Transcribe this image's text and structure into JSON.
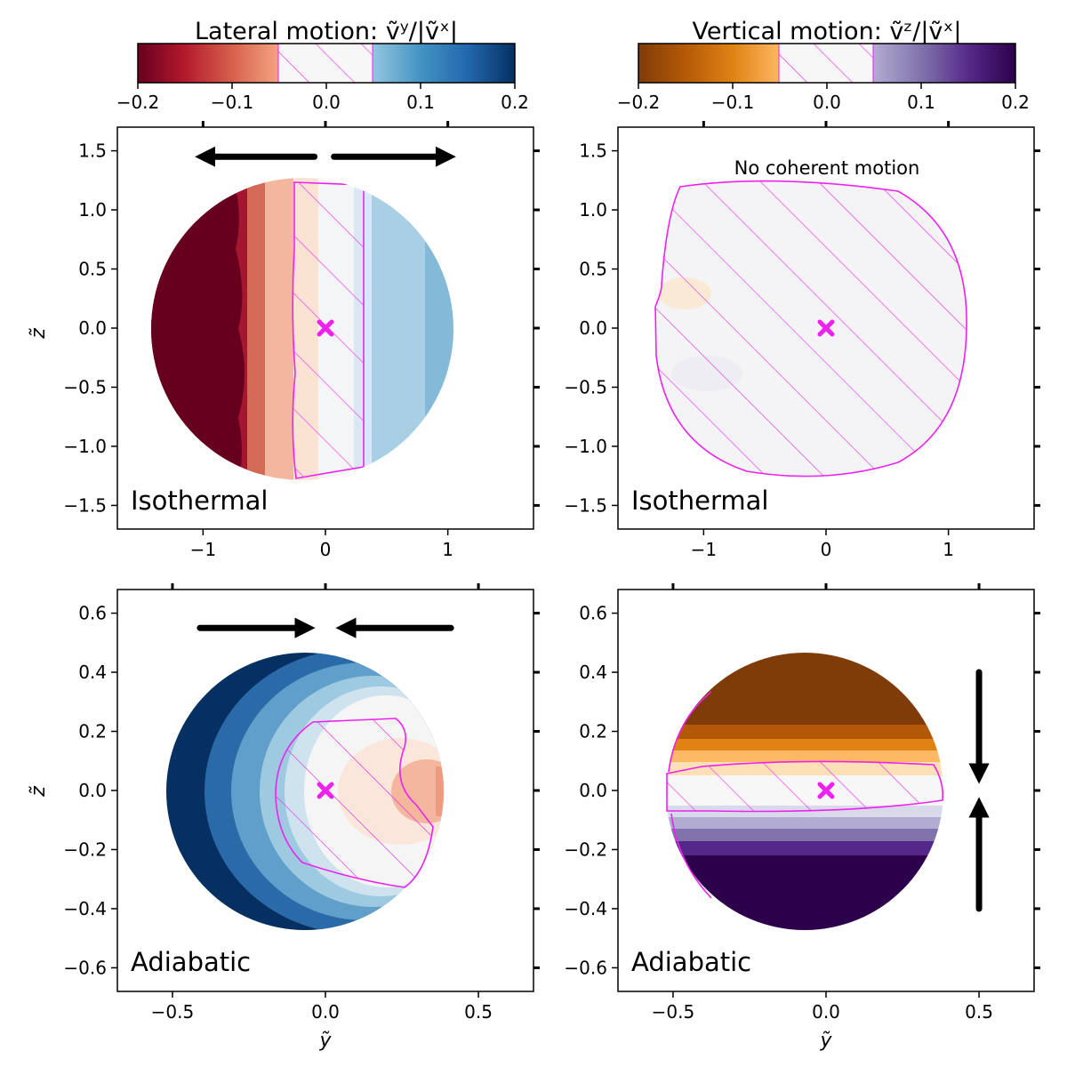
{
  "colorbars": [
    {
      "title": "Lateral motion: ṽʸ/|ṽˣ|",
      "cmap": "RdBu",
      "range": [
        -0.2,
        0.2
      ],
      "ticks": [
        "−0.2",
        "−0.1",
        "0.0",
        "0.1",
        "0.2"
      ],
      "hatched_band": [
        -0.05,
        0.05
      ],
      "hatch_color": "#ee22ee"
    },
    {
      "title": "Vertical motion: ṽᶻ/|ṽˣ|",
      "cmap": "PuOr",
      "range": [
        -0.2,
        0.2
      ],
      "ticks": [
        "−0.2",
        "−0.1",
        "0.0",
        "0.1",
        "0.2"
      ],
      "hatched_band": [
        -0.05,
        0.05
      ],
      "hatch_color": "#ee22ee"
    }
  ],
  "chart_data": [
    {
      "type": "heatmap",
      "panel": "top-left",
      "label": "Isothermal",
      "quantity": "lateral",
      "ylabel": "z̃",
      "xlabel": "",
      "xlim": [
        -1.7,
        1.7
      ],
      "ylim": [
        -1.7,
        1.7
      ],
      "xticks": [
        -1,
        0,
        1
      ],
      "xtick_labels": [
        "−1",
        "0",
        "1"
      ],
      "yticks": [
        1.5,
        1.0,
        0.5,
        0.0,
        -0.5,
        -1.0,
        -1.5
      ],
      "ytick_labels": [
        "1.5",
        "1.0",
        "0.5",
        "0.0",
        "−0.5",
        "−1.0",
        "−1.5"
      ],
      "disk": {
        "cx": -0.2,
        "cy": 0.0,
        "r": 1.25
      },
      "field": "lateral gradient: −0.2 at left to +0.1 at right",
      "hatched_region": "vertical band −0.27 ≤ y ≤ 0.3",
      "marker": [
        0,
        0
      ],
      "arrows": [
        {
          "from": [
            -0.09,
            1.45
          ],
          "to": [
            -1.0,
            1.45
          ]
        },
        {
          "from": [
            0.07,
            1.45
          ],
          "to": [
            1.0,
            1.45
          ]
        }
      ],
      "note": ""
    },
    {
      "type": "heatmap",
      "panel": "top-right",
      "label": "Isothermal",
      "quantity": "vertical",
      "ylabel": "",
      "xlabel": "",
      "xlim": [
        -1.7,
        1.7
      ],
      "ylim": [
        -1.7,
        1.7
      ],
      "xticks": [
        -1,
        0,
        1
      ],
      "xtick_labels": [
        "−1",
        "0",
        "1"
      ],
      "yticks": [
        1.5,
        1.0,
        0.5,
        0.0,
        -0.5,
        -1.0,
        -1.5
      ],
      "ytick_labels": [
        "1.5",
        "1.0",
        "0.5",
        "0.0",
        "−0.5",
        "−1.0",
        "−1.5"
      ],
      "disk": {
        "cx": -0.2,
        "cy": 0.0,
        "r": 1.25
      },
      "field": "near zero everywhere",
      "hatched_region": "entire disk",
      "marker": [
        0,
        0
      ],
      "arrows": [],
      "note": "No coherent motion"
    },
    {
      "type": "heatmap",
      "panel": "bottom-left",
      "label": "Adiabatic",
      "quantity": "lateral",
      "ylabel": "z̃",
      "xlabel": "ỹ",
      "xlim": [
        -0.68,
        0.68
      ],
      "ylim": [
        -0.68,
        0.68
      ],
      "xticks": [
        -0.5,
        0.0,
        0.5
      ],
      "xtick_labels": [
        "−0.5",
        "0.0",
        "0.5"
      ],
      "yticks": [
        0.6,
        0.4,
        0.2,
        0.0,
        -0.2,
        -0.4,
        -0.6
      ],
      "ytick_labels": [
        "0.6",
        "0.4",
        "0.2",
        "0.0",
        "−0.2",
        "−0.4",
        "−0.6"
      ],
      "disk": {
        "cx": -0.07,
        "cy": 0.0,
        "r": 0.45
      },
      "field": "+0.2 at left rim decreasing to about −0.08 at right rim",
      "hatched_region": "right-centre lobe around marker",
      "marker": [
        0,
        0
      ],
      "arrows": [
        {
          "from": [
            -0.41,
            0.55
          ],
          "to": [
            -0.06,
            0.55
          ]
        },
        {
          "from": [
            0.41,
            0.55
          ],
          "to": [
            0.06,
            0.55
          ]
        }
      ],
      "note": ""
    },
    {
      "type": "heatmap",
      "panel": "bottom-right",
      "label": "Adiabatic",
      "quantity": "vertical",
      "ylabel": "",
      "xlabel": "ỹ",
      "xlim": [
        -0.68,
        0.68
      ],
      "ylim": [
        -0.68,
        0.68
      ],
      "xticks": [
        -0.5,
        0.0,
        0.5
      ],
      "xtick_labels": [
        "−0.5",
        "0.0",
        "0.5"
      ],
      "yticks": [
        0.6,
        0.4,
        0.2,
        0.0,
        -0.2,
        -0.4,
        -0.6
      ],
      "ytick_labels": [
        "0.6",
        "0.4",
        "0.2",
        "0.0",
        "−0.2",
        "−0.4",
        "−0.6"
      ],
      "disk": {
        "cx": -0.07,
        "cy": 0.0,
        "r": 0.45
      },
      "field": "−0.2 in upper half, +0.2 in lower half",
      "hatched_region": "thin horizontal band −0.03 ≤ z ≤ 0.05",
      "marker": [
        0,
        0
      ],
      "arrows": [
        {
          "from": [
            0.5,
            0.4
          ],
          "to": [
            0.5,
            0.05
          ]
        },
        {
          "from": [
            0.5,
            -0.4
          ],
          "to": [
            0.5,
            -0.05
          ]
        }
      ],
      "note": ""
    }
  ]
}
